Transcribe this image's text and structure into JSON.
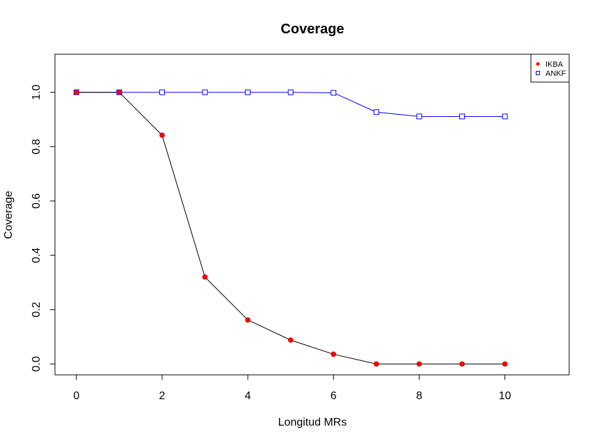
{
  "chart_data": {
    "type": "line",
    "title": "Coverage",
    "xlabel": "Longitud MRs",
    "ylabel": "Coverage",
    "xlim": [
      -0.5,
      11.5
    ],
    "ylim": [
      -0.04,
      1.14
    ],
    "xticks": [
      0,
      2,
      4,
      6,
      8,
      10
    ],
    "xtick_labels": [
      "0",
      "2",
      "4",
      "6",
      "8",
      "10"
    ],
    "yticks": [
      0.0,
      0.2,
      0.4,
      0.6,
      0.8,
      1.0
    ],
    "ytick_labels": [
      "0.0",
      "0.2",
      "0.4",
      "0.6",
      "0.8",
      "1.0"
    ],
    "grid": false,
    "legend_position": "top-right",
    "series": [
      {
        "name": "IKBA",
        "line_color": "#000000",
        "marker_color": "#ff0000",
        "marker": "filled-circle",
        "x": [
          0,
          1,
          2,
          3,
          4,
          5,
          6,
          7,
          8,
          9,
          10
        ],
        "y": [
          1.0,
          1.0,
          0.842,
          0.32,
          0.162,
          0.088,
          0.036,
          0.0,
          0.0,
          0.0,
          0.0
        ]
      },
      {
        "name": "ANKF",
        "line_color": "#0000ff",
        "marker_color": "#0000ff",
        "marker": "open-square",
        "x": [
          0,
          1,
          2,
          3,
          4,
          5,
          6,
          7,
          8,
          9,
          10
        ],
        "y": [
          1.0,
          1.0,
          1.0,
          1.0,
          1.0,
          1.0,
          0.998,
          0.927,
          0.911,
          0.911,
          0.911
        ]
      }
    ]
  }
}
